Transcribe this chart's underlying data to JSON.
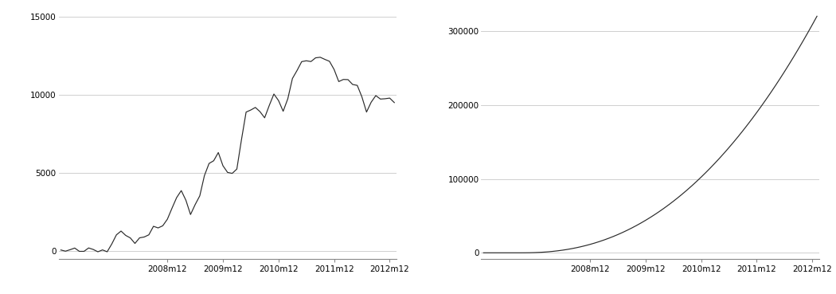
{
  "chart1_yticks": [
    0,
    5000,
    10000,
    15000
  ],
  "chart1_ylim": [
    -500,
    15500
  ],
  "chart2_yticks": [
    0,
    100000,
    200000,
    300000
  ],
  "chart2_ylim": [
    -8000,
    330000
  ],
  "xtick_labels": [
    "2008m12",
    "2009m12",
    "2010m12",
    "2011m12",
    "2012m12"
  ],
  "line_color": "#2a2a2a",
  "bg_color": "#ffffff",
  "grid_color": "#c8c8c8",
  "tick_fontsize": 7.5,
  "figsize": [
    10.5,
    3.69
  ],
  "dpi": 100
}
